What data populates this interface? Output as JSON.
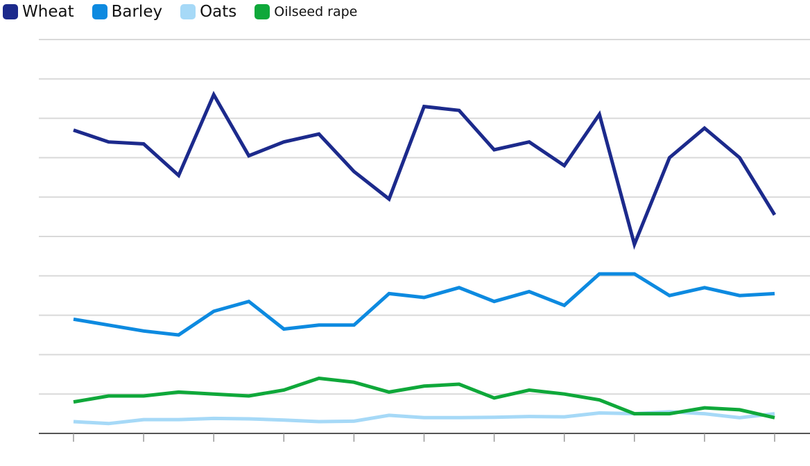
{
  "chart_data": {
    "type": "line",
    "title": "",
    "xlabel": "",
    "ylabel": "",
    "ylim": [
      0,
      10
    ],
    "y_gridlines": [
      1,
      2,
      3,
      4,
      5,
      6,
      7,
      8,
      9,
      10
    ],
    "grid": "horizontal",
    "legend_position": "top-left",
    "x": [
      1,
      2,
      3,
      4,
      5,
      6,
      7,
      8,
      9,
      10,
      11,
      12,
      13,
      14,
      15,
      16,
      17,
      18,
      19,
      20,
      21
    ],
    "series": [
      {
        "name": "Wheat",
        "color": "#1c2a8c",
        "values": [
          7.7,
          7.4,
          7.35,
          6.55,
          8.6,
          7.05,
          7.4,
          7.6,
          6.65,
          5.95,
          8.3,
          8.2,
          7.2,
          7.4,
          6.8,
          8.1,
          4.8,
          7.0,
          7.75,
          7.0,
          5.55
        ]
      },
      {
        "name": "Barley",
        "color": "#0d8ae0",
        "values": [
          2.9,
          2.75,
          2.6,
          2.5,
          3.1,
          3.35,
          2.65,
          2.75,
          2.75,
          3.55,
          3.45,
          3.7,
          3.35,
          3.6,
          3.25,
          4.05,
          4.05,
          3.5,
          3.7,
          3.5,
          3.55
        ]
      },
      {
        "name": "Oats",
        "color": "#a6d9f7",
        "values": [
          0.3,
          0.25,
          0.35,
          0.35,
          0.38,
          0.37,
          0.34,
          0.3,
          0.31,
          0.46,
          0.4,
          0.4,
          0.41,
          0.43,
          0.42,
          0.52,
          0.5,
          0.55,
          0.5,
          0.4,
          0.5
        ]
      },
      {
        "name": "Oilseed rape",
        "color": "#0fa83a",
        "values": [
          0.8,
          0.95,
          0.95,
          1.05,
          1.0,
          0.95,
          1.1,
          1.4,
          1.3,
          1.05,
          1.2,
          1.25,
          0.9,
          1.1,
          1.0,
          0.85,
          0.5,
          0.5,
          0.65,
          0.6,
          0.4
        ]
      }
    ]
  }
}
